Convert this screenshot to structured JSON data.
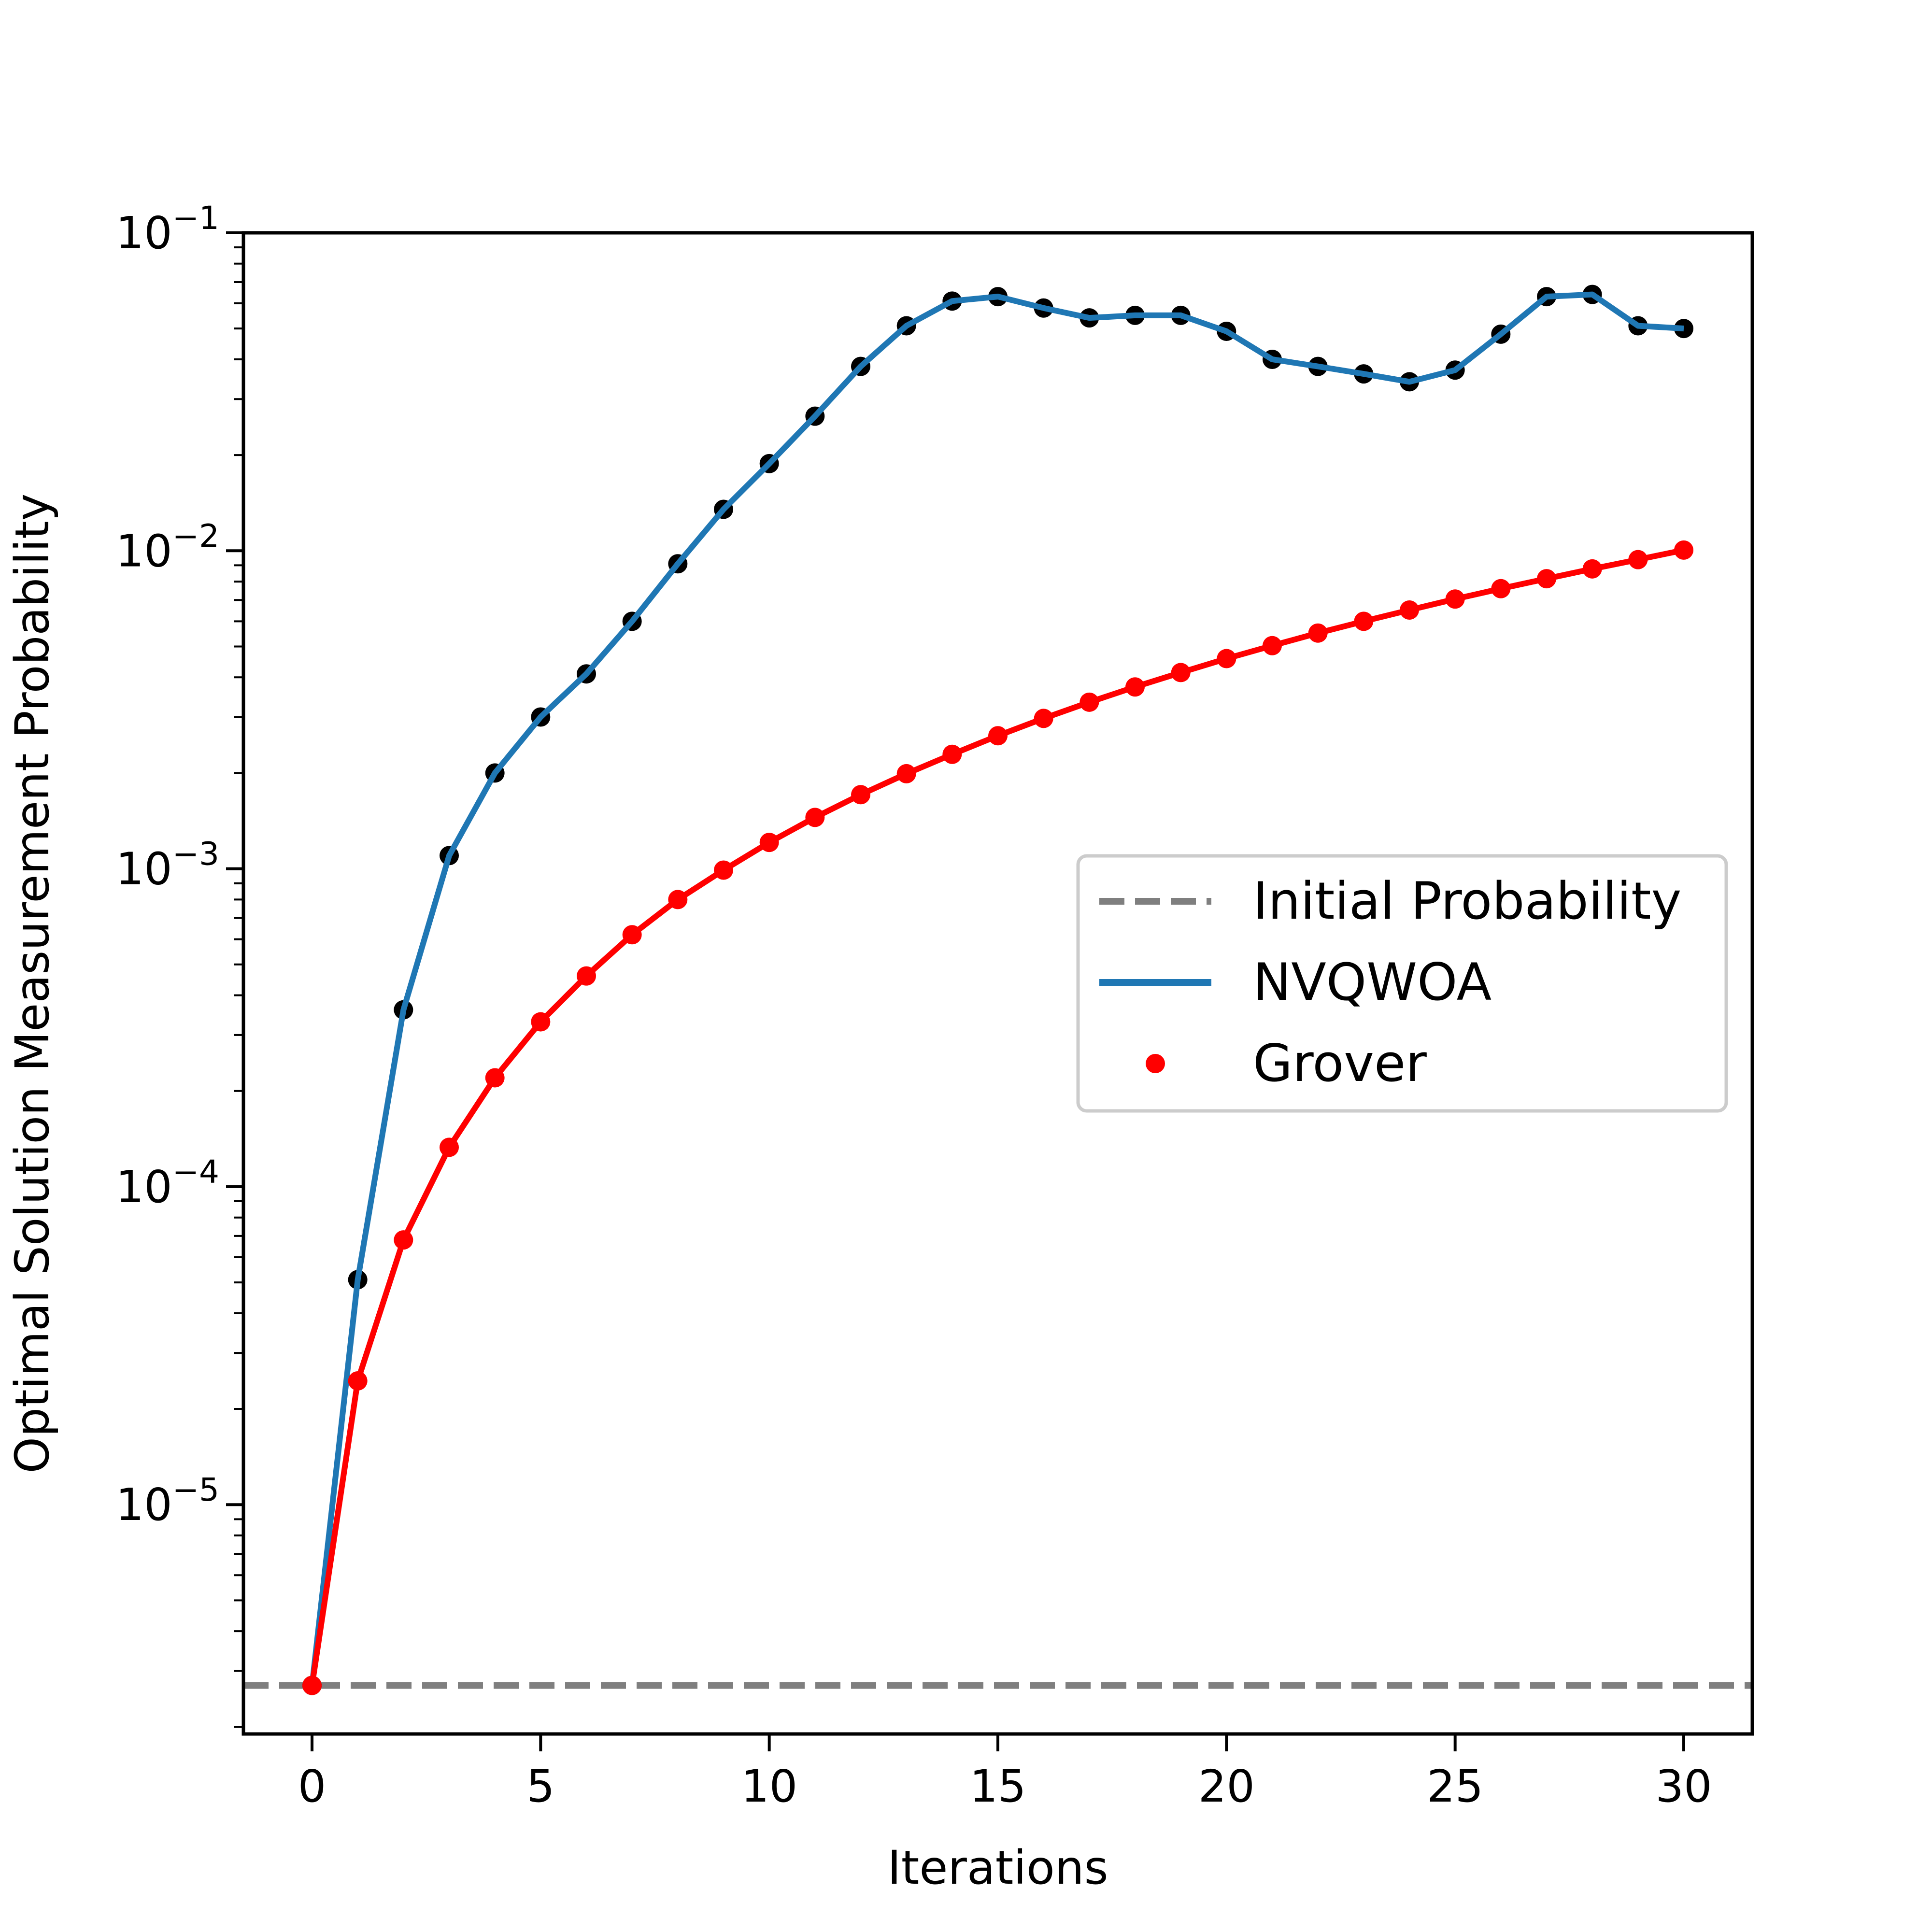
{
  "chart_data": {
    "type": "line",
    "xlabel": "Iterations",
    "ylabel": "Optimal Solution Measurement Probability",
    "yscale": "log",
    "xlim": [
      -1.5,
      31.5
    ],
    "ylim": [
      1.9e-06,
      0.1
    ],
    "x_ticks": [
      0,
      5,
      10,
      15,
      20,
      25,
      30
    ],
    "y_ticks": [
      {
        "value": 1e-05,
        "base": "10",
        "exp": "−5"
      },
      {
        "value": 0.0001,
        "base": "10",
        "exp": "−4"
      },
      {
        "value": 0.001,
        "base": "10",
        "exp": "−3"
      },
      {
        "value": 0.01,
        "base": "10",
        "exp": "−2"
      },
      {
        "value": 0.1,
        "base": "10",
        "exp": "−1"
      }
    ],
    "legend_position": "center-right",
    "series": [
      {
        "name": "Initial Probability",
        "style": "dashed",
        "color": "#7f7f7f",
        "y": 2.7e-06
      },
      {
        "name": "NVQWOA",
        "style": "line-with-markers",
        "color": "#1f77b4",
        "marker_color": "#000000",
        "x": [
          0,
          1,
          2,
          3,
          4,
          5,
          6,
          7,
          8,
          9,
          10,
          11,
          12,
          13,
          14,
          15,
          16,
          17,
          18,
          19,
          20,
          21,
          22,
          23,
          24,
          25,
          26,
          27,
          28,
          29,
          30
        ],
        "values": [
          2.7e-06,
          5.1e-05,
          0.00036,
          0.0011,
          0.002,
          0.003,
          0.0041,
          0.006,
          0.0091,
          0.0135,
          0.0188,
          0.0265,
          0.038,
          0.051,
          0.061,
          0.063,
          0.058,
          0.054,
          0.055,
          0.055,
          0.049,
          0.04,
          0.038,
          0.036,
          0.034,
          0.037,
          0.048,
          0.063,
          0.064,
          0.051,
          0.05
        ]
      },
      {
        "name": "Grover",
        "style": "line-with-markers",
        "color": "#ff0000",
        "marker_color": "#ff0000",
        "x": [
          0,
          1,
          2,
          3,
          4,
          5,
          6,
          7,
          8,
          9,
          10,
          11,
          12,
          13,
          14,
          15,
          16,
          17,
          18,
          19,
          20,
          21,
          22,
          23,
          24,
          25,
          26,
          27,
          28,
          29,
          30
        ],
        "values": [
          2.7e-06,
          2.45e-05,
          6.8e-05,
          0.000133,
          0.00022,
          0.00033,
          0.00046,
          0.00062,
          0.0008,
          0.00099,
          0.00121,
          0.00145,
          0.00171,
          0.00199,
          0.00229,
          0.00262,
          0.00297,
          0.00334,
          0.00373,
          0.00414,
          0.00458,
          0.00503,
          0.00551,
          0.006,
          0.00651,
          0.00705,
          0.0076,
          0.00817,
          0.00877,
          0.00938,
          0.01005
        ]
      }
    ]
  }
}
